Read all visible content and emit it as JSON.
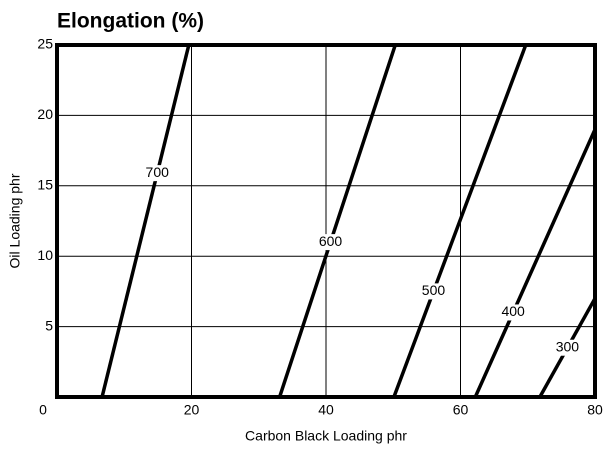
{
  "chart_data": {
    "type": "line",
    "title": "Elongation (%)",
    "xlabel": "Carbon Black Loading phr",
    "ylabel": "Oil Loading phr",
    "xlim": [
      0,
      80
    ],
    "ylim": [
      0,
      25
    ],
    "xticks": [
      0,
      20,
      40,
      60,
      80
    ],
    "yticks": [
      5,
      10,
      15,
      20,
      25
    ],
    "grid": true,
    "series": [
      {
        "name": "700",
        "color": "#000000",
        "x": [
          6.7,
          19.6
        ],
        "values": [
          0,
          25
        ]
      },
      {
        "name": "600",
        "color": "#000000",
        "x": [
          33.1,
          50.3
        ],
        "values": [
          0,
          25
        ]
      },
      {
        "name": "500",
        "color": "#000000",
        "x": [
          50.1,
          69.7
        ],
        "values": [
          0,
          25
        ]
      },
      {
        "name": "400",
        "color": "#000000",
        "x": [
          62.2,
          80
        ],
        "values": [
          0,
          19
        ]
      },
      {
        "name": "300",
        "color": "#000000",
        "x": [
          71.8,
          80
        ],
        "values": [
          0,
          7
        ]
      }
    ]
  }
}
